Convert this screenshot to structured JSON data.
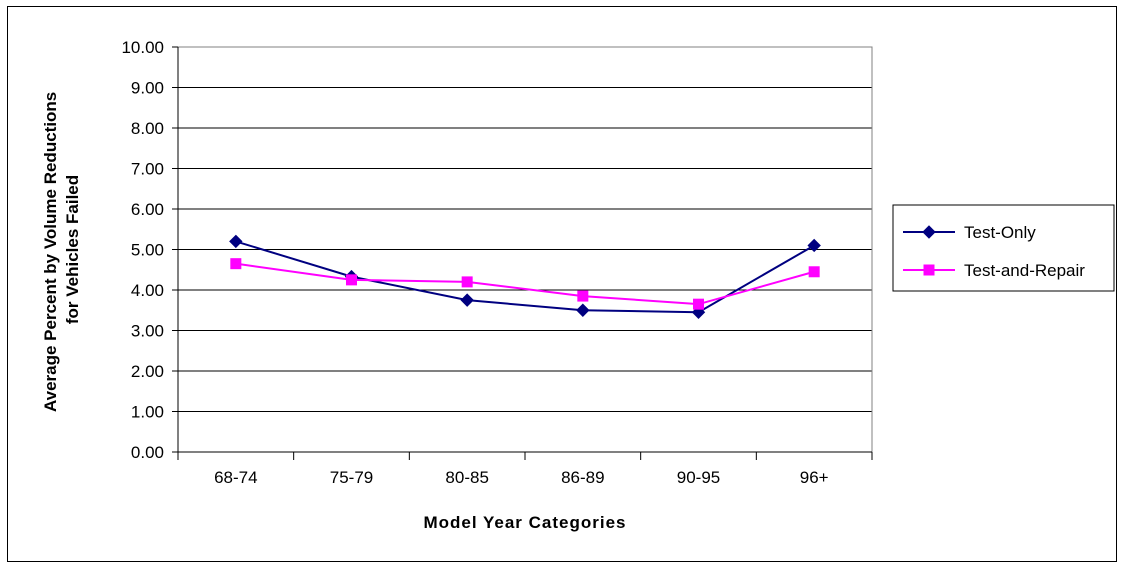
{
  "chart_data": {
    "type": "line",
    "categories": [
      "68-74",
      "75-79",
      "80-85",
      "86-89",
      "90-95",
      "96+"
    ],
    "series": [
      {
        "name": "Test-Only",
        "values": [
          5.2,
          4.33,
          3.75,
          3.5,
          3.45,
          5.1
        ],
        "color": "#000080",
        "marker": "diamond"
      },
      {
        "name": "Test-and-Repair",
        "values": [
          4.65,
          4.25,
          4.2,
          3.85,
          3.65,
          4.45
        ],
        "color": "#FF00FF",
        "marker": "square"
      }
    ],
    "xlabel": "Model Year Categories",
    "ylabel_lines": [
      "Average Percent by Volume Reductions",
      "for Vehicles Failed"
    ],
    "ylim": [
      0,
      10
    ],
    "yticks": [
      "0.00",
      "1.00",
      "2.00",
      "3.00",
      "4.00",
      "5.00",
      "6.00",
      "7.00",
      "8.00",
      "9.00",
      "10.00"
    ],
    "grid": true,
    "legend_position": "right"
  }
}
